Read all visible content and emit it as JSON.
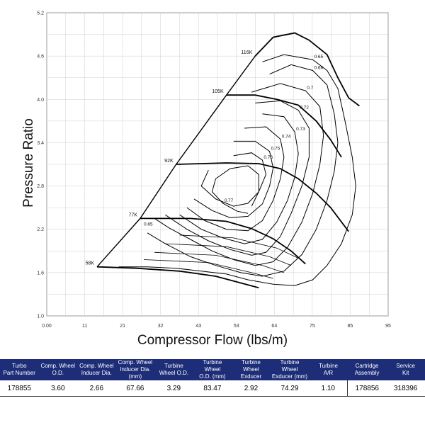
{
  "chart_data": {
    "type": "line",
    "title": "",
    "xlabel": "Compressor Flow (lbs/m)",
    "ylabel": "Pressure Ratio",
    "xlim": [
      0,
      95
    ],
    "ylim": [
      1.0,
      5.2
    ],
    "grid": true,
    "x_ticks": [
      "0.00",
      "11",
      "21",
      "32",
      "43",
      "53",
      "64",
      "75",
      "85",
      "95"
    ],
    "y_ticks": [
      "1.0",
      "1.6",
      "2.2",
      "2.8",
      "3.4",
      "4.0",
      "4.6",
      "5.2"
    ],
    "surge_line": [
      [
        14,
        1.68
      ],
      [
        26,
        2.35
      ],
      [
        36,
        3.1
      ],
      [
        50,
        4.06
      ],
      [
        58,
        4.6
      ],
      [
        63,
        4.86
      ],
      [
        69,
        4.92
      ]
    ],
    "speed_lines": [
      {
        "name": "58K",
        "points": [
          [
            14,
            1.68
          ],
          [
            25,
            1.66
          ],
          [
            37,
            1.62
          ],
          [
            47,
            1.55
          ],
          [
            53,
            1.47
          ],
          [
            59,
            1.39
          ]
        ]
      },
      {
        "name": "77K",
        "points": [
          [
            26,
            2.35
          ],
          [
            40,
            2.35
          ],
          [
            50,
            2.31
          ],
          [
            57,
            2.21
          ],
          [
            63,
            2.07
          ],
          [
            68,
            1.9
          ],
          [
            72,
            1.72
          ]
        ]
      },
      {
        "name": "92K",
        "points": [
          [
            36,
            3.1
          ],
          [
            50,
            3.12
          ],
          [
            59,
            3.11
          ],
          [
            65,
            3.04
          ],
          [
            70,
            2.9
          ],
          [
            75,
            2.7
          ],
          [
            79,
            2.5
          ],
          [
            84,
            2.17
          ]
        ]
      },
      {
        "name": "105K",
        "points": [
          [
            50,
            4.06
          ],
          [
            58,
            4.06
          ],
          [
            64,
            4.0
          ],
          [
            70,
            3.92
          ],
          [
            75,
            3.7
          ],
          [
            79,
            3.44
          ],
          [
            82,
            3.2
          ]
        ]
      },
      {
        "name": "116K",
        "points": [
          [
            58,
            4.6
          ],
          [
            63,
            4.86
          ],
          [
            69,
            4.92
          ],
          [
            73,
            4.82
          ],
          [
            78,
            4.62
          ],
          [
            81,
            4.3
          ],
          [
            84,
            4.02
          ],
          [
            87,
            3.91
          ]
        ]
      }
    ],
    "efficiency_islands": [
      {
        "label": "0.65",
        "points": [
          [
            60,
            4.52
          ],
          [
            66,
            4.62
          ],
          [
            74,
            4.55
          ],
          [
            78,
            4.4
          ],
          [
            81,
            4.15
          ],
          [
            83,
            3.7
          ],
          [
            85,
            3.2
          ],
          [
            86,
            2.8
          ],
          [
            85,
            2.4
          ],
          [
            82,
            2.0
          ],
          [
            78,
            1.7
          ],
          [
            74,
            1.5
          ],
          [
            69,
            1.42
          ],
          [
            63,
            1.44
          ],
          [
            56,
            1.5
          ],
          [
            50,
            1.58
          ],
          [
            43,
            1.62
          ],
          [
            36,
            1.66
          ],
          [
            28,
            1.68
          ],
          [
            20,
            1.68
          ]
        ]
      },
      {
        "label": "0.68",
        "points": [
          [
            62,
            4.35
          ],
          [
            68,
            4.48
          ],
          [
            74,
            4.4
          ],
          [
            78,
            4.2
          ],
          [
            80,
            3.8
          ],
          [
            81,
            3.4
          ],
          [
            80,
            3.0
          ],
          [
            78,
            2.6
          ],
          [
            75,
            2.2
          ],
          [
            71,
            1.85
          ],
          [
            66,
            1.62
          ],
          [
            60,
            1.55
          ],
          [
            54,
            1.6
          ],
          [
            47,
            1.7
          ],
          [
            40,
            1.82
          ],
          [
            33,
            2.0
          ],
          [
            28,
            2.15
          ]
        ]
      },
      {
        "label": "0.7",
        "points": [
          [
            57,
            4.1
          ],
          [
            65,
            4.22
          ],
          [
            72,
            4.12
          ],
          [
            76,
            3.9
          ],
          [
            77,
            3.5
          ],
          [
            76,
            3.1
          ],
          [
            74,
            2.7
          ],
          [
            71,
            2.3
          ],
          [
            67,
            1.95
          ],
          [
            63,
            1.75
          ],
          [
            58,
            1.7
          ],
          [
            52,
            1.78
          ],
          [
            46,
            1.9
          ],
          [
            40,
            2.06
          ],
          [
            34,
            2.22
          ],
          [
            30,
            2.35
          ]
        ]
      },
      {
        "label": "0.72",
        "points": [
          [
            58,
            3.95
          ],
          [
            65,
            3.98
          ],
          [
            70,
            3.85
          ],
          [
            73,
            3.6
          ],
          [
            73,
            3.2
          ],
          [
            71,
            2.8
          ],
          [
            68,
            2.42
          ],
          [
            65,
            2.1
          ],
          [
            61,
            1.88
          ],
          [
            57,
            1.84
          ],
          [
            51,
            1.92
          ],
          [
            45,
            2.04
          ],
          [
            39,
            2.2
          ],
          [
            33,
            2.4
          ]
        ]
      },
      {
        "label": "0.73",
        "points": [
          [
            60,
            3.8
          ],
          [
            66,
            3.76
          ],
          [
            69,
            3.55
          ],
          [
            70,
            3.25
          ],
          [
            69,
            2.92
          ],
          [
            67,
            2.6
          ],
          [
            64,
            2.3
          ],
          [
            60,
            2.06
          ],
          [
            55,
            2.0
          ],
          [
            49,
            2.08
          ],
          [
            43,
            2.2
          ],
          [
            37,
            2.4
          ]
        ]
      },
      {
        "label": "0.74",
        "points": [
          [
            55,
            3.6
          ],
          [
            61,
            3.62
          ],
          [
            65,
            3.45
          ],
          [
            66,
            3.2
          ],
          [
            65,
            2.9
          ],
          [
            63,
            2.6
          ],
          [
            60,
            2.32
          ],
          [
            56,
            2.18
          ],
          [
            50,
            2.2
          ],
          [
            44,
            2.32
          ],
          [
            39,
            2.5
          ]
        ]
      },
      {
        "label": "0.75",
        "points": [
          [
            52,
            3.42
          ],
          [
            58,
            3.42
          ],
          [
            62,
            3.28
          ],
          [
            63,
            3.05
          ],
          [
            62,
            2.8
          ],
          [
            60,
            2.55
          ],
          [
            56,
            2.38
          ],
          [
            51,
            2.36
          ],
          [
            46,
            2.46
          ],
          [
            41,
            2.62
          ]
        ]
      },
      {
        "label": "0.76",
        "points": [
          [
            52,
            3.22
          ],
          [
            57,
            3.26
          ],
          [
            60,
            3.16
          ],
          [
            61,
            2.96
          ],
          [
            59,
            2.72
          ],
          [
            56,
            2.56
          ],
          [
            52,
            2.52
          ],
          [
            47,
            2.62
          ],
          [
            43,
            2.8
          ],
          [
            45,
            3.02
          ]
        ]
      },
      {
        "label": "0.77",
        "points": [
          [
            56,
            2.42
          ],
          [
            53,
            2.45
          ],
          [
            49,
            2.56
          ],
          [
            46,
            2.72
          ],
          [
            47,
            2.9
          ],
          [
            51,
            3.04
          ],
          [
            56,
            3.08
          ],
          [
            59,
            2.96
          ],
          [
            59,
            2.72
          ],
          [
            57,
            2.52
          ]
        ]
      }
    ],
    "annotations": [
      "0.65"
    ],
    "lower_flow_lines": [
      [
        [
          27,
          1.78
        ],
        [
          45,
          1.74
        ],
        [
          57,
          1.6
        ],
        [
          63,
          1.52
        ]
      ],
      [
        [
          30,
          1.88
        ],
        [
          47,
          1.84
        ],
        [
          60,
          1.7
        ],
        [
          66,
          1.6
        ]
      ],
      [
        [
          33,
          2.0
        ],
        [
          50,
          1.96
        ],
        [
          62,
          1.82
        ],
        [
          68,
          1.7
        ]
      ],
      [
        [
          37,
          2.12
        ],
        [
          52,
          2.08
        ],
        [
          64,
          1.94
        ],
        [
          70,
          1.8
        ]
      ]
    ]
  },
  "specs_table": {
    "headers": [
      [
        "Turbo",
        "Part Number"
      ],
      [
        "Comp. Wheel",
        "O.D."
      ],
      [
        "Comp. Wheel",
        "Inducer Dia."
      ],
      [
        "Comp. Wheel",
        "Inducer Dia. (mm)"
      ],
      [
        "Turbine",
        "Wheel O.D."
      ],
      [
        "Turbine Wheel",
        "O.D. (mm)"
      ],
      [
        "Turbine Wheel",
        "Exducer"
      ],
      [
        "Turbine Wheel",
        "Exducer (mm)"
      ],
      [
        "Turbine",
        "A/R"
      ],
      [
        "Cartridge",
        "Assembly"
      ],
      [
        "Service",
        "Kit"
      ]
    ],
    "row": [
      "178855",
      "3.60",
      "2.66",
      "67.66",
      "3.29",
      "83.47",
      "2.92",
      "74.29",
      "1.10",
      "178856",
      "318396"
    ]
  },
  "colors": {
    "header_bg": "#1d2d78",
    "header_text": "#ffffff",
    "grid": "#cfcfcf",
    "line": "#000000"
  }
}
